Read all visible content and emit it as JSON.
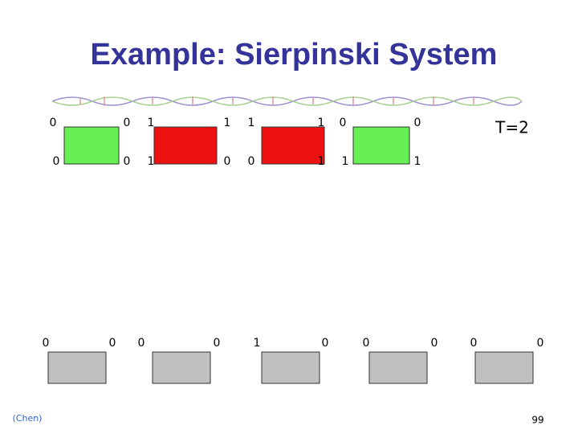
{
  "title": "Example: Sierpinski System",
  "time_label": "T=2",
  "top_tiles": [
    {
      "color": "#66ee55",
      "corners": [
        "0",
        "0",
        "0",
        "0"
      ]
    },
    {
      "color": "#ee1111",
      "corners": [
        "1",
        "1",
        "1",
        "0"
      ]
    },
    {
      "color": "#ee1111",
      "corners": [
        "1",
        "1",
        "0",
        "1"
      ]
    },
    {
      "color": "#66ee55",
      "corners": [
        "0",
        "0",
        "1",
        "1"
      ]
    }
  ],
  "bottom_tiles": [
    {
      "color": "#c0c0c0",
      "corners": [
        "0",
        "0"
      ]
    },
    {
      "color": "#c0c0c0",
      "corners": [
        "0",
        "0"
      ]
    },
    {
      "color": "#c0c0c0",
      "corners": [
        "1",
        "0"
      ]
    },
    {
      "color": "#c0c0c0",
      "corners": [
        "0",
        "0"
      ]
    },
    {
      "color": "#c0c0c0",
      "corners": [
        "0",
        "0"
      ]
    }
  ],
  "footer": {
    "source": "(Chen)",
    "page_number": "99"
  }
}
